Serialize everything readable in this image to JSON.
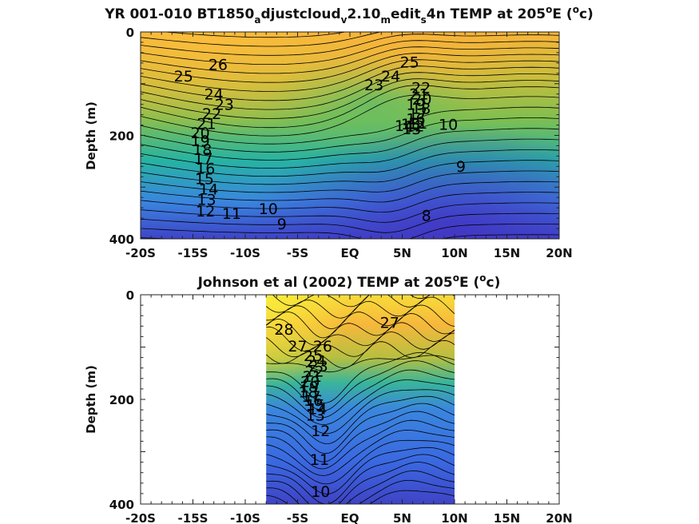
{
  "figure": {
    "colors": {
      "warm": "#f7e43a",
      "orange": "#f7b53a",
      "green": "#8ec04a",
      "teal": "#25b59d",
      "blue": "#3a6ee0",
      "deep": "#3e3fc8",
      "contour": "#000000"
    }
  },
  "chart_data": [
    {
      "type": "contour",
      "title": {
        "before": "YR 001-010 BT1850",
        "s1": "a",
        "t1": "djustcloud",
        "s2": "v",
        "t2": "2.10",
        "s3": "m",
        "t3": "edit",
        "s4": "s",
        "t4": "4n TEMP at 205",
        "sup": "o",
        "t5": "E (",
        "sup2": "o",
        "t6": "c)"
      },
      "ylabel": "Depth (m)",
      "xlim": [
        -20,
        20
      ],
      "ylim": [
        0,
        400
      ],
      "data_extent_x": [
        -20,
        20
      ],
      "xticks": [
        -20,
        -15,
        -10,
        -5,
        0,
        5,
        10,
        15,
        20
      ],
      "xtick_labels": [
        "-20S",
        "-15S",
        "-10S",
        "-5S",
        "EQ",
        "5N",
        "10N",
        "15N",
        "20N"
      ],
      "yticks": [
        0,
        200,
        400
      ],
      "ytick_labels": [
        "0",
        "200",
        "400"
      ],
      "levels": [
        26,
        25,
        24,
        23,
        22,
        21,
        20,
        19,
        18,
        17,
        16,
        15,
        14,
        13,
        12,
        11,
        10,
        9,
        8
      ],
      "contour_labels": [
        {
          "text": "26",
          "x": -12.6,
          "y": 65
        },
        {
          "text": "25",
          "x": -15.9,
          "y": 87
        },
        {
          "text": "24",
          "x": -13.0,
          "y": 122
        },
        {
          "text": "23",
          "x": -12.0,
          "y": 142
        },
        {
          "text": "22",
          "x": -13.2,
          "y": 160
        },
        {
          "text": "21",
          "x": -13.7,
          "y": 179
        },
        {
          "text": "20",
          "x": -14.3,
          "y": 197
        },
        {
          "text": "19",
          "x": -14.3,
          "y": 212
        },
        {
          "text": "18",
          "x": -14.1,
          "y": 229
        },
        {
          "text": "17",
          "x": -14.0,
          "y": 246
        },
        {
          "text": "16",
          "x": -13.8,
          "y": 266
        },
        {
          "text": "15",
          "x": -13.9,
          "y": 286
        },
        {
          "text": "14",
          "x": -13.5,
          "y": 306
        },
        {
          "text": "13",
          "x": -13.7,
          "y": 326
        },
        {
          "text": "12",
          "x": -13.8,
          "y": 348
        },
        {
          "text": "11",
          "x": -11.3,
          "y": 353
        },
        {
          "text": "10",
          "x": -7.8,
          "y": 344
        },
        {
          "text": "9",
          "x": -6.5,
          "y": 373
        },
        {
          "text": "25",
          "x": 5.7,
          "y": 60
        },
        {
          "text": "24",
          "x": 3.9,
          "y": 87
        },
        {
          "text": "23",
          "x": 2.3,
          "y": 104
        },
        {
          "text": "22",
          "x": 6.8,
          "y": 110
        },
        {
          "text": "21",
          "x": 6.6,
          "y": 122
        },
        {
          "text": "20",
          "x": 6.9,
          "y": 131
        },
        {
          "text": "19",
          "x": 6.3,
          "y": 142
        },
        {
          "text": "18",
          "x": 6.8,
          "y": 150
        },
        {
          "text": "17",
          "x": 6.5,
          "y": 160
        },
        {
          "text": "16",
          "x": 6.3,
          "y": 170
        },
        {
          "text": "15",
          "x": 5.8,
          "y": 180
        },
        {
          "text": "14",
          "x": 5.2,
          "y": 183
        },
        {
          "text": "13",
          "x": 5.9,
          "y": 189
        },
        {
          "text": "12",
          "x": 6.2,
          "y": 184
        },
        {
          "text": "11",
          "x": 6.5,
          "y": 178
        },
        {
          "text": "10",
          "x": 9.4,
          "y": 181
        },
        {
          "text": "9",
          "x": 10.6,
          "y": 262
        },
        {
          "text": "8",
          "x": 7.3,
          "y": 357
        }
      ]
    },
    {
      "type": "contour",
      "title": {
        "before": "Johnson et al (2002) TEMP at 205",
        "sup": "o",
        "t5": "E (",
        "sup2": "o",
        "t6": "c)"
      },
      "ylabel": "Depth (m)",
      "xlim": [
        -20,
        20
      ],
      "ylim": [
        0,
        400
      ],
      "data_extent_x": [
        -8,
        10
      ],
      "xticks": [
        -20,
        -15,
        -10,
        -5,
        0,
        5,
        10,
        15,
        20
      ],
      "xtick_labels": [
        "-20S",
        "-15S",
        "-10S",
        "-5S",
        "EQ",
        "5N",
        "10N",
        "15N",
        "20N"
      ],
      "yticks": [
        0,
        200,
        400
      ],
      "ytick_labels": [
        "0",
        "200",
        "400"
      ],
      "levels": [
        28,
        27,
        26,
        25,
        24,
        23,
        22,
        21,
        20,
        19,
        18,
        17,
        16,
        15,
        14,
        13,
        12,
        11,
        10
      ],
      "contour_labels": [
        {
          "text": "28",
          "x": -6.3,
          "y": 68
        },
        {
          "text": "27",
          "x": -5.0,
          "y": 100
        },
        {
          "text": "26",
          "x": -2.6,
          "y": 100
        },
        {
          "text": "25",
          "x": -3.5,
          "y": 118
        },
        {
          "text": "24",
          "x": -3.2,
          "y": 128
        },
        {
          "text": "23",
          "x": -3.0,
          "y": 138
        },
        {
          "text": "22",
          "x": -3.4,
          "y": 148
        },
        {
          "text": "21",
          "x": -3.6,
          "y": 158
        },
        {
          "text": "20",
          "x": -3.8,
          "y": 168
        },
        {
          "text": "19",
          "x": -3.9,
          "y": 178
        },
        {
          "text": "18",
          "x": -4.0,
          "y": 188
        },
        {
          "text": "17",
          "x": -3.7,
          "y": 196
        },
        {
          "text": "16",
          "x": -3.5,
          "y": 204
        },
        {
          "text": "15",
          "x": -3.3,
          "y": 212
        },
        {
          "text": "14",
          "x": -3.1,
          "y": 220
        },
        {
          "text": "13",
          "x": -3.3,
          "y": 232
        },
        {
          "text": "12",
          "x": -2.8,
          "y": 262
        },
        {
          "text": "11",
          "x": -2.9,
          "y": 317
        },
        {
          "text": "10",
          "x": -2.8,
          "y": 378
        },
        {
          "text": "27",
          "x": 3.8,
          "y": 55
        }
      ]
    }
  ]
}
